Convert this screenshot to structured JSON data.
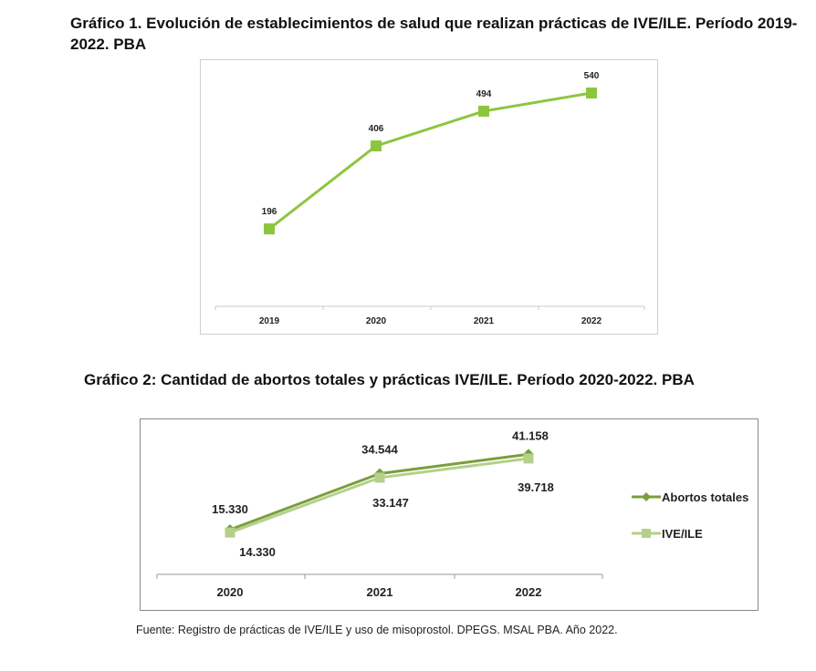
{
  "titles": {
    "chart1": "Gráfico 1. Evolución de establecimientos de salud que realizan prácticas de IVE/ILE. Período 2019-2022. PBA",
    "chart2": "Gráfico 2: Cantidad de abortos totales y prácticas IVE/ILE. Período 2020-2022.  PBA"
  },
  "source": "Fuente: Registro de prácticas de IVE/ILE y uso de misoprostol. DPEGS. MSAL PBA. Año 2022.",
  "colors": {
    "line1": "#8cc63f",
    "abortos": "#7a9e3c",
    "ive": "#b5d08a"
  },
  "chart_data": [
    {
      "type": "line",
      "title": "Gráfico 1. Evolución de establecimientos de salud que realizan prácticas de IVE/ILE. Período 2019-2022. PBA",
      "categories": [
        "2019",
        "2020",
        "2021",
        "2022"
      ],
      "values": [
        196,
        406,
        494,
        540
      ],
      "value_labels": [
        "196",
        "406",
        "494",
        "540"
      ],
      "ylim": [
        0,
        600
      ],
      "grid": false,
      "legend": "none"
    },
    {
      "type": "line",
      "title": "Gráfico 2: Cantidad de abortos totales y prácticas IVE/ILE. Período 2020-2022.  PBA",
      "categories": [
        "2020",
        "2021",
        "2022"
      ],
      "series": [
        {
          "name": "Abortos totales",
          "values": [
            15330,
            34544,
            41158
          ],
          "labels": [
            "15.330",
            "34.544",
            "41.158"
          ],
          "marker": "diamond"
        },
        {
          "name": "IVE/ILE",
          "values": [
            14330,
            33147,
            39718
          ],
          "labels": [
            "14.330",
            "33.147",
            "39.718"
          ],
          "marker": "square"
        }
      ],
      "ylim": [
        0,
        50000
      ],
      "grid": false,
      "legend": "right"
    }
  ]
}
